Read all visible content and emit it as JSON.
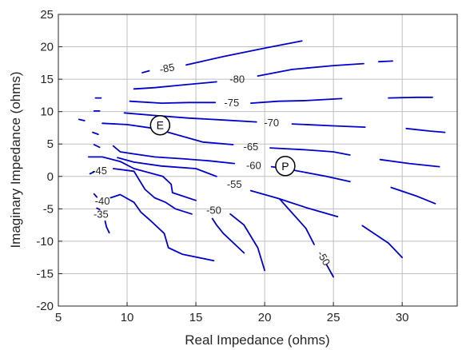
{
  "chart_data": {
    "type": "contour",
    "title": "",
    "xlabel": "Real Impedance (ohms)",
    "ylabel": "Imaginary Impedance (ohms)",
    "xlim": [
      5,
      34
    ],
    "ylim": [
      -20,
      25
    ],
    "xticks": [
      5,
      10,
      15,
      20,
      25,
      30
    ],
    "yticks": [
      -20,
      -15,
      -10,
      -5,
      0,
      5,
      10,
      15,
      20,
      25
    ],
    "grid": true,
    "line_color": "#0000cc",
    "levels": [
      {
        "level": -85,
        "label": "-85",
        "label_at": [
          12.9,
          16.7
        ],
        "label_rot": -10,
        "points": [
          [
            11.1,
            16.0
          ],
          [
            11.6,
            16.3
          ]
        ],
        "points2": [
          [
            14.3,
            17.2
          ],
          [
            17,
            18.5
          ],
          [
            20,
            19.8
          ],
          [
            22.7,
            20.9
          ]
        ]
      },
      {
        "level": -80,
        "label": "-80",
        "label_at": [
          18.0,
          15.0
        ],
        "label_rot": 0,
        "points": [
          [
            10.5,
            13.5
          ],
          [
            12,
            13.7
          ],
          [
            14,
            14.1
          ],
          [
            16.5,
            14.6
          ]
        ],
        "points2": [
          [
            19.5,
            15.5
          ],
          [
            22,
            16.5
          ],
          [
            25,
            17.1
          ],
          [
            27.2,
            17.4
          ]
        ],
        "points3": [
          [
            28.3,
            17.7
          ],
          [
            29.3,
            17.8
          ]
        ]
      },
      {
        "level": -75,
        "label": "-75",
        "label_at": [
          17.6,
          11.4
        ],
        "label_rot": 0,
        "points": [
          [
            7.7,
            12.1
          ],
          [
            8.1,
            12.1
          ]
        ],
        "points2": [
          [
            10.2,
            11.6
          ],
          [
            12.5,
            11.3
          ],
          [
            14.5,
            11.4
          ],
          [
            16.4,
            11.4
          ]
        ],
        "points3": [
          [
            19.0,
            11.3
          ],
          [
            21,
            11.6
          ],
          [
            23,
            11.7
          ],
          [
            25.6,
            12.0
          ]
        ],
        "points4": [
          [
            29.0,
            12.1
          ],
          [
            31,
            12.2
          ],
          [
            32.2,
            12.2
          ]
        ]
      },
      {
        "level": -70,
        "label": "-70",
        "label_at": [
          20.5,
          8.3
        ],
        "label_rot": 0,
        "points": [
          [
            7.6,
            10.1
          ],
          [
            8.0,
            10.1
          ]
        ],
        "points2": [
          [
            9.8,
            9.8
          ],
          [
            12,
            9.4
          ],
          [
            14.5,
            9.0
          ],
          [
            17,
            8.7
          ],
          [
            19.4,
            8.4
          ]
        ],
        "points3": [
          [
            22.0,
            8.1
          ],
          [
            25,
            7.8
          ],
          [
            27.3,
            7.6
          ]
        ],
        "points4": [
          [
            30.3,
            7.4
          ],
          [
            32,
            7.0
          ],
          [
            33.1,
            6.8
          ]
        ]
      },
      {
        "level": -65,
        "label": "-65",
        "label_at": [
          19.0,
          4.6
        ],
        "label_rot": 0,
        "points": [
          [
            6.5,
            8.8
          ],
          [
            6.9,
            8.6
          ]
        ],
        "points2": [
          [
            8.2,
            8.2
          ],
          [
            10,
            8.0
          ],
          [
            12,
            7.4
          ],
          [
            14,
            6.2
          ],
          [
            15.5,
            5.3
          ],
          [
            17.7,
            4.9
          ]
        ],
        "points3": [
          [
            20.4,
            4.4
          ],
          [
            23,
            4.1
          ],
          [
            25,
            3.8
          ],
          [
            26.2,
            3.3
          ]
        ],
        "points4": [
          [
            28.4,
            2.6
          ],
          [
            30.5,
            2.0
          ],
          [
            32.7,
            1.5
          ]
        ]
      },
      {
        "level": -60,
        "label": "-60",
        "label_at": [
          19.2,
          1.7
        ],
        "label_rot": 0,
        "points": [
          [
            7.5,
            6.8
          ],
          [
            7.9,
            6.5
          ]
        ],
        "points2": [
          [
            9.0,
            4.7
          ],
          [
            9.5,
            3.8
          ],
          [
            10.4,
            3.5
          ],
          [
            12,
            3.0
          ],
          [
            14.2,
            2.7
          ],
          [
            16,
            2.4
          ],
          [
            17.8,
            2.0
          ]
        ],
        "points3": [
          [
            20.5,
            1.5
          ],
          [
            21.5,
            1.2
          ],
          [
            23.5,
            0.4
          ],
          [
            24.5,
            0.0
          ],
          [
            26.2,
            -0.8
          ]
        ],
        "points4": [
          [
            29.2,
            -1.7
          ],
          [
            31,
            -3.0
          ],
          [
            32.4,
            -4.2
          ]
        ]
      },
      {
        "level": -55,
        "label": "-55",
        "label_at": [
          17.8,
          -1.2
        ],
        "label_rot": 0,
        "points": [
          [
            7.6,
            4.9
          ],
          [
            8.0,
            4.5
          ]
        ],
        "points2": [
          [
            9.3,
            2.9
          ],
          [
            10.5,
            2.2
          ],
          [
            12.5,
            1.6
          ],
          [
            15,
            1.2
          ],
          [
            16.5,
            0.0
          ]
        ],
        "points3": [
          [
            19.0,
            -2.2
          ],
          [
            21,
            -3.4
          ],
          [
            23,
            -4.8
          ],
          [
            25.3,
            -6.2
          ]
        ],
        "points4": [
          [
            27.1,
            -7.6
          ],
          [
            29,
            -10.3
          ],
          [
            30.0,
            -12.5
          ]
        ]
      },
      {
        "level": -50,
        "label": "-50",
        "label_at": [
          16.3,
          -5.2
        ],
        "label_rot": 0,
        "points": [
          [
            7.2,
            3.0
          ],
          [
            8.2,
            3.0
          ],
          [
            9.5,
            2.3
          ],
          [
            10.5,
            1.2
          ],
          [
            12.6,
            0.0
          ],
          [
            13.2,
            -1.2
          ],
          [
            13.3,
            -2.5
          ],
          [
            14.0,
            -3.0
          ],
          [
            15.0,
            -3.7
          ]
        ],
        "points2": [
          [
            17.5,
            -5.8
          ],
          [
            18.5,
            -7.5
          ],
          [
            19.5,
            -11.0
          ],
          [
            20.0,
            -14.5
          ]
        ]
      },
      {
        "level": -45,
        "label": "-45",
        "label_at": [
          8.0,
          0.9
        ],
        "label_rot": 0,
        "points": [
          [
            7.3,
            0.4
          ],
          [
            7.6,
            0.7
          ]
        ],
        "points2": [
          [
            9.0,
            1.2
          ],
          [
            10.5,
            0.8
          ],
          [
            11.3,
            -2.0
          ],
          [
            12.0,
            -3.3
          ],
          [
            12.8,
            -4.0
          ],
          [
            13.5,
            -5.0
          ],
          [
            14.7,
            -5.8
          ]
        ],
        "points3": [
          [
            16.2,
            -6.5
          ],
          [
            16.5,
            -7.5
          ],
          [
            17.0,
            -8.8
          ],
          [
            18.0,
            -10.8
          ],
          [
            18.5,
            -11.8
          ]
        ]
      },
      {
        "level": -40,
        "label": "-40",
        "label_at": [
          8.2,
          -3.8
        ],
        "label_rot": 0,
        "points": [
          [
            7.6,
            -2.7
          ],
          [
            7.8,
            -3.2
          ]
        ],
        "points2": [
          [
            8.8,
            -3.3
          ],
          [
            9.5,
            -2.8
          ],
          [
            10.5,
            -4.0
          ],
          [
            11.0,
            -5.5
          ],
          [
            11.8,
            -7.0
          ],
          [
            12.7,
            -8.8
          ],
          [
            13.0,
            -11.0
          ],
          [
            14.0,
            -12.0
          ],
          [
            16.3,
            -13.0
          ]
        ]
      },
      {
        "level": -35,
        "label": "-35",
        "label_at": [
          8.1,
          -5.8
        ],
        "label_rot": 0,
        "points": [
          [
            7.8,
            -4.9
          ],
          [
            8.0,
            -5.1
          ]
        ],
        "points2": [
          [
            8.4,
            -6.9
          ],
          [
            8.5,
            -7.8
          ],
          [
            8.7,
            -8.7
          ]
        ]
      },
      {
        "level": -50,
        "label": "-50",
        "label_at": [
          24.3,
          -12.6
        ],
        "label_rot": 60,
        "points": [
          [
            21.1,
            -3.5
          ],
          [
            23.0,
            -8.0
          ],
          [
            23.6,
            -10.5
          ]
        ],
        "points2": [
          [
            24.5,
            -13.6
          ],
          [
            25.0,
            -15.5
          ]
        ]
      }
    ],
    "markers": [
      {
        "label": "E",
        "x": 12.4,
        "y": 7.9
      },
      {
        "label": "P",
        "x": 21.5,
        "y": 1.6
      }
    ]
  }
}
